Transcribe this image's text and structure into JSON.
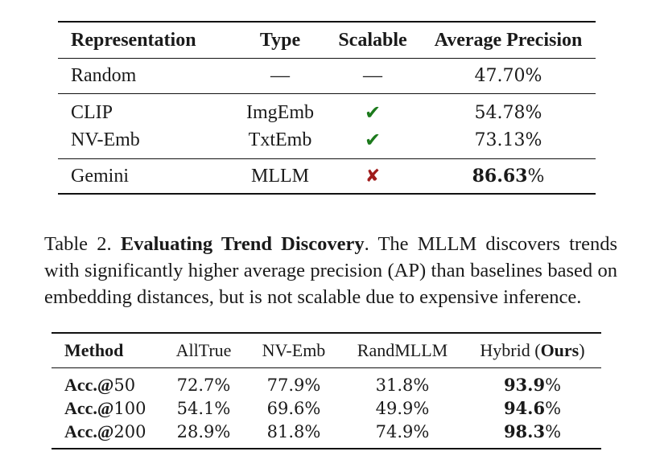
{
  "table1": {
    "headers": {
      "representation": "Representation",
      "type": "Type",
      "scalable": "Scalable",
      "average_precision": "Average Precision"
    },
    "rows": [
      {
        "representation": "Random",
        "type": "—",
        "scalable": "—",
        "average_precision": "47.70%"
      },
      {
        "representation": "CLIP",
        "type": "ImgEmb",
        "scalable": "✔",
        "average_precision": "54.78%"
      },
      {
        "representation": "NV-Emb",
        "type": "TxtEmb",
        "scalable": "✔",
        "average_precision": "73.13%"
      },
      {
        "representation": "Gemini",
        "type": "MLLM",
        "scalable": "✘",
        "average_precision_bold": "86.63",
        "average_precision_suffix": "%"
      }
    ]
  },
  "caption": {
    "label": "Table 2.",
    "lead": "Evaluating Trend Discovery",
    "text": ". The MLLM discovers trends with significantly higher average precision (AP) than baselines based on embedding distances, but is not scalable due to expensive inference."
  },
  "table2": {
    "headers": {
      "method": "Method",
      "alltrue": "AllTrue",
      "nvemb": "NV-Emb",
      "randmllm": "RandMLLM",
      "hybrid_prefix": "Hybrid (",
      "hybrid_bold": "Ours",
      "hybrid_suffix": ")"
    },
    "rows": [
      {
        "acc_word": "Acc.@",
        "acc_num": "50",
        "alltrue": "72.7%",
        "nvemb": "77.9%",
        "randmllm": "31.8%",
        "hybrid_bold": "93.9",
        "hybrid_suffix": "%"
      },
      {
        "acc_word": "Acc.@",
        "acc_num": "100",
        "alltrue": "54.1%",
        "nvemb": "69.6%",
        "randmllm": "49.9%",
        "hybrid_bold": "94.6",
        "hybrid_suffix": "%"
      },
      {
        "acc_word": "Acc.@",
        "acc_num": "200",
        "alltrue": "28.9%",
        "nvemb": "81.8%",
        "randmllm": "74.9%",
        "hybrid_bold": "98.3",
        "hybrid_suffix": "%"
      }
    ]
  }
}
